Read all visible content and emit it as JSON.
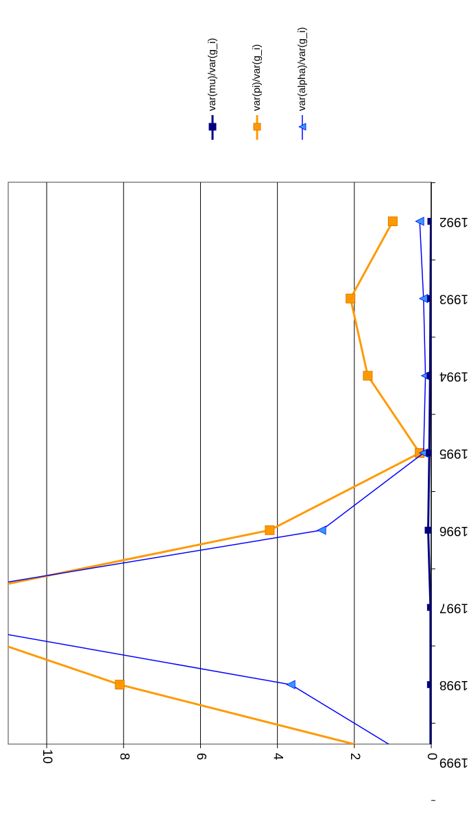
{
  "chart_data": {
    "type": "line",
    "orientation": "rotated 90 degrees clockwise",
    "categories": [
      "1992",
      "1993",
      "1994",
      "1995",
      "1996",
      "1997",
      "1998",
      "1999"
    ],
    "ylim": [
      0,
      11
    ],
    "yticks": [
      "0",
      "2",
      "4",
      "6",
      "8",
      "10"
    ],
    "grid": true,
    "legend_position": "right",
    "series": [
      {
        "name": "var(mu)/var(g_i)",
        "color": "#000080",
        "marker": "square",
        "values": [
          0.01,
          0.02,
          0.03,
          0.05,
          0.08,
          0.02,
          0.02,
          0.02
        ]
      },
      {
        "name": "var(pi)/var(g_i)",
        "color": "#FF9900",
        "marker": "square",
        "values": [
          1.0,
          2.1,
          1.65,
          0.3,
          4.2,
          14.0,
          8.1,
          0.2
        ]
      },
      {
        "name": "var(alpha)/var(g_i)",
        "color": "#0000FF",
        "marker_color": "#3399FF",
        "marker": "triangle",
        "values": [
          0.3,
          0.2,
          0.15,
          0.2,
          2.85,
          15.0,
          3.65,
          0.35
        ]
      }
    ]
  }
}
